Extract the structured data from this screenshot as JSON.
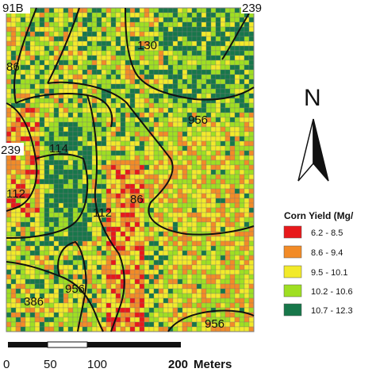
{
  "map": {
    "zone_labels": [
      "91B",
      "239",
      "130",
      "86",
      "956",
      "239",
      "114",
      "112",
      "86",
      "112",
      "956",
      "386",
      "956"
    ],
    "yield_class_colors": [
      "#e8191b",
      "#f28b27",
      "#f2ea2a",
      "#9fdf22",
      "#17774a"
    ],
    "grid_colors": {
      "cell_border": "#7a7a7a",
      "boundary": "#111111"
    }
  },
  "north_arrow": {
    "letter": "N"
  },
  "legend": {
    "title": "Corn Yield (Mg/",
    "items": [
      {
        "label": "6.2 - 8.5",
        "color": "#e8191b"
      },
      {
        "label": "8.6 - 9.4",
        "color": "#f28b27"
      },
      {
        "label": "9.5 - 10.1",
        "color": "#f2ea2a"
      },
      {
        "label": "10.2 - 10.6",
        "color": "#9fdf22"
      },
      {
        "label": "10.7 - 12.3",
        "color": "#17774a"
      }
    ]
  },
  "scale_bar": {
    "ticks": [
      "0",
      "50",
      "100",
      "200"
    ],
    "units": "Meters"
  }
}
